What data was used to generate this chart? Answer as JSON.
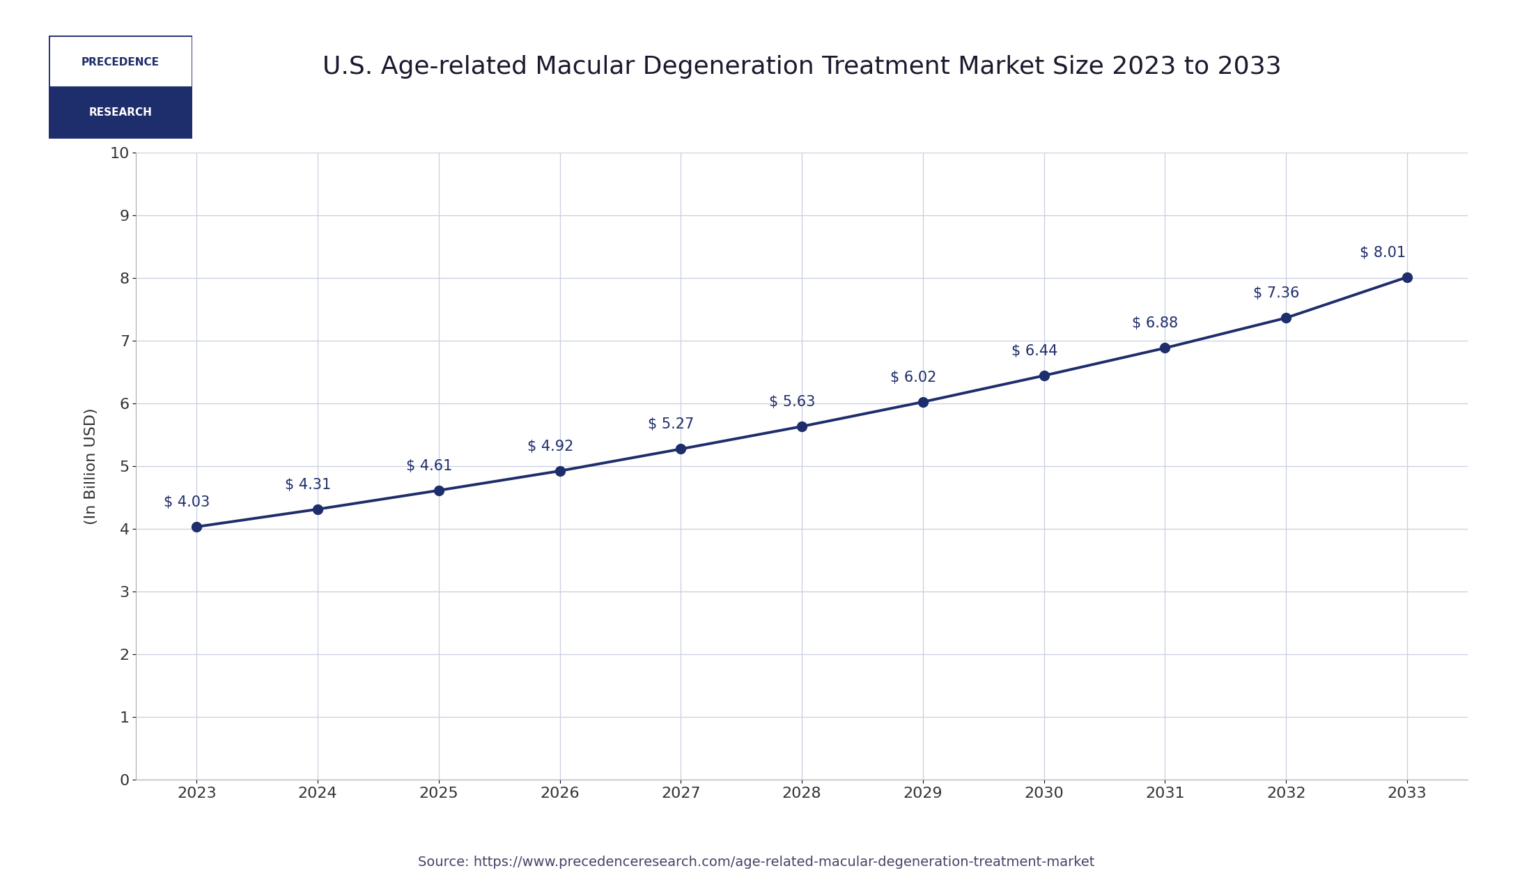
{
  "title": "U.S. Age-related Macular Degeneration Treatment Market Size 2023 to 2033",
  "xlabel": "",
  "ylabel": "(In Billion USD)",
  "source_text": "Source: https://www.precedenceresearch.com/age-related-macular-degeneration-treatment-market",
  "years": [
    2023,
    2024,
    2025,
    2026,
    2027,
    2028,
    2029,
    2030,
    2031,
    2032,
    2033
  ],
  "values": [
    4.03,
    4.31,
    4.61,
    4.92,
    5.27,
    5.63,
    6.02,
    6.44,
    6.88,
    7.36,
    8.01
  ],
  "labels": [
    "$ 4.03",
    "$ 4.31",
    "$ 4.61",
    "$ 4.92",
    "$ 5.27",
    "$ 5.63",
    "$ 6.02",
    "$ 6.44",
    "$ 6.88",
    "$ 7.36",
    "$ 8.01"
  ],
  "line_color": "#1e2d6b",
  "marker_color": "#1e2d6b",
  "annotation_color": "#1e2d6b",
  "grid_color": "#c8cfe0",
  "background_color": "#ffffff",
  "plot_bg_color": "#ffffff",
  "ylim": [
    0,
    10
  ],
  "yticks": [
    0,
    1,
    2,
    3,
    4,
    5,
    6,
    7,
    8,
    9,
    10
  ],
  "title_fontsize": 26,
  "ylabel_fontsize": 16,
  "tick_fontsize": 16,
  "annotation_fontsize": 15,
  "source_fontsize": 14,
  "logo_text_top": "PRECEDENCE",
  "logo_text_bottom": "RESEARCH",
  "logo_bg_top": "#ffffff",
  "logo_bg_bottom": "#1e2d6b",
  "logo_text_top_color": "#1e2d6b",
  "logo_text_bottom_color": "#ffffff",
  "logo_border_color": "#1e2d6b"
}
